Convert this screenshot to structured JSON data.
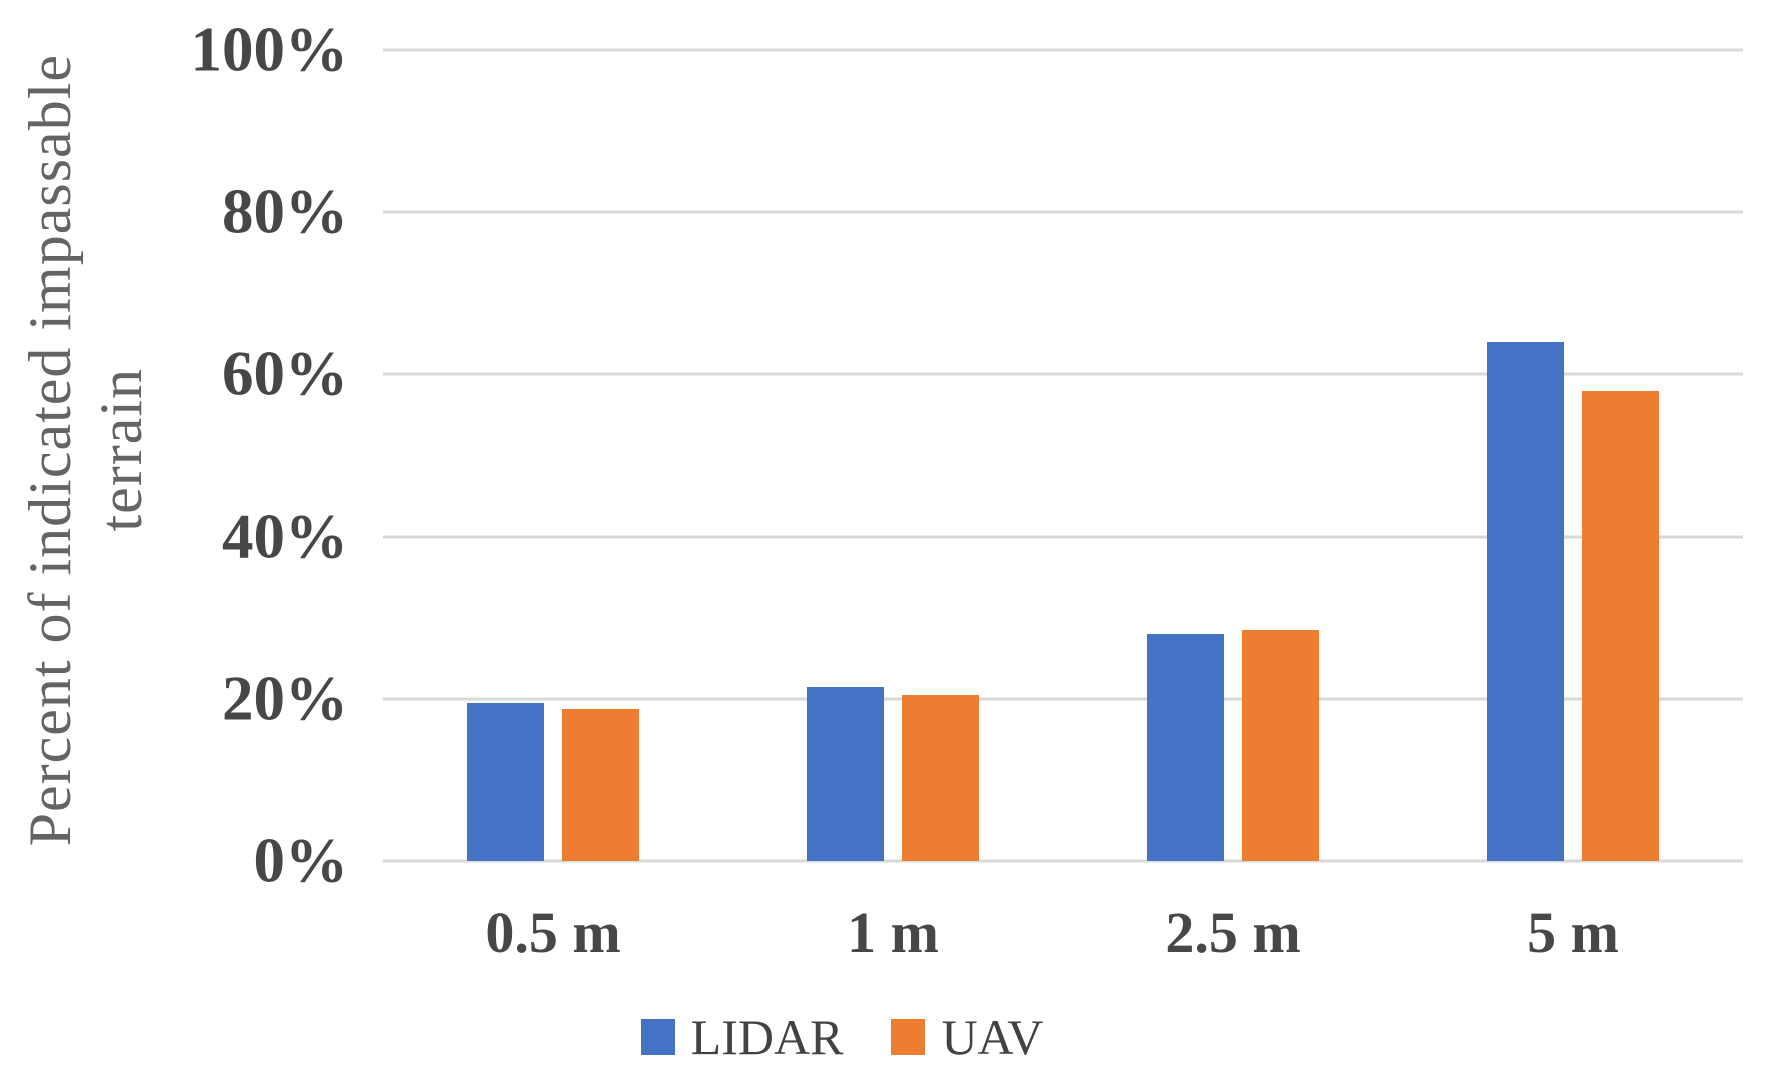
{
  "chart_data": {
    "type": "bar",
    "title": "",
    "xlabel": "",
    "ylabel": "Percent of indicated impassable terrain",
    "ylabel_lines": [
      "Percent of indicated impassable",
      "terrain"
    ],
    "categories": [
      "0.5 m",
      "1 m",
      "2.5 m",
      "5 m"
    ],
    "series": [
      {
        "name": "LIDAR",
        "color": "#4472C4",
        "values": [
          19.5,
          21.5,
          28,
          64
        ]
      },
      {
        "name": "UAV",
        "color": "#ED7D31",
        "values": [
          18.8,
          20.5,
          28.5,
          58
        ]
      }
    ],
    "yticks": [
      {
        "value": 100,
        "label": "100%"
      },
      {
        "value": 80,
        "label": "80%"
      },
      {
        "value": 60,
        "label": "60%"
      },
      {
        "value": 40,
        "label": "40%"
      },
      {
        "value": 20,
        "label": "20%"
      },
      {
        "value": 0,
        "label": "0%"
      }
    ],
    "ylim": [
      0,
      100
    ],
    "grid": "horizontal",
    "legend_position": "bottom",
    "colors": {
      "background": "#ffffff",
      "gridline": "#d9d9d9",
      "tick_label": "#474747",
      "category_label": "#474747",
      "axis_title": "#646464",
      "legend_label": "#424242"
    }
  }
}
